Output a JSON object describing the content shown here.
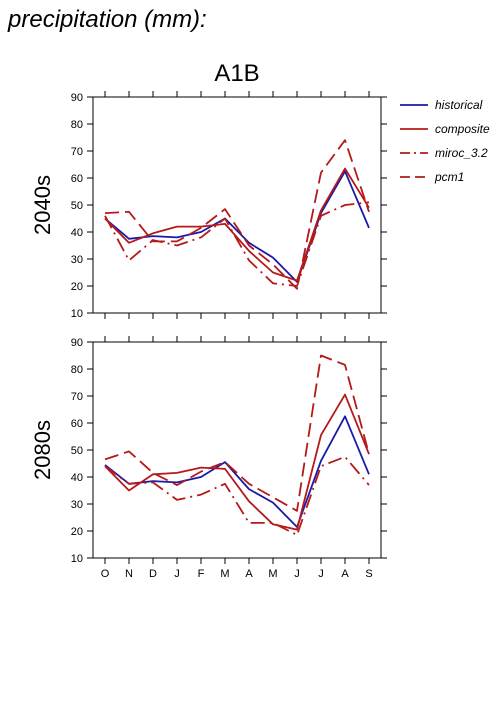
{
  "heading": "precipitation (mm):",
  "chart_data": {
    "type": "line",
    "title": "A1B",
    "categories": [
      "O",
      "N",
      "D",
      "J",
      "F",
      "M",
      "A",
      "M",
      "J",
      "J",
      "A",
      "S"
    ],
    "ylim": [
      10,
      90
    ],
    "yticks": [
      10,
      20,
      30,
      40,
      50,
      60,
      70,
      80,
      90
    ],
    "legend_position": "right",
    "grid": false,
    "legend": [
      {
        "name": "historical",
        "color": "#1a1aaa",
        "dash": "solid"
      },
      {
        "name": "composite",
        "color": "#b41a1a",
        "dash": "solid"
      },
      {
        "name": "miroc_3.2",
        "color": "#b41a1a",
        "dash": "dashdot"
      },
      {
        "name": "pcm1",
        "color": "#b41a1a",
        "dash": "dashed"
      }
    ],
    "panels": [
      {
        "ylabel": "2040s",
        "series": [
          {
            "name": "historical",
            "values": [
              45,
              37.5,
              38.5,
              38,
              40,
              45,
              36,
              30.5,
              21.5,
              47,
              62.5,
              41.5
            ]
          },
          {
            "name": "composite",
            "values": [
              45,
              36,
              39.5,
              42,
              42,
              43,
              33,
              25,
              22,
              48,
              63.5,
              49
            ]
          },
          {
            "name": "miroc_3.2",
            "values": [
              46,
              29.5,
              37,
              35,
              38,
              45,
              29.5,
              21,
              20,
              46,
              50,
              51
            ]
          },
          {
            "name": "pcm1",
            "values": [
              47,
              47.5,
              36.5,
              36.5,
              41.5,
              48.5,
              35,
              28,
              19,
              62,
              74,
              47.5
            ]
          }
        ]
      },
      {
        "ylabel": "2080s",
        "series": [
          {
            "name": "historical",
            "values": [
              44.5,
              37.5,
              38.5,
              38,
              40,
              45.5,
              35.5,
              30.5,
              21.5,
              46,
              62.5,
              41
            ]
          },
          {
            "name": "composite",
            "values": [
              44,
              35,
              41,
              41.5,
              43.5,
              43,
              31,
              22.5,
              20.5,
              55.5,
              70.5,
              48.5
            ]
          },
          {
            "name": "miroc_3.2",
            "values": [
              44,
              37.5,
              38,
              31.5,
              33.5,
              37.5,
              23,
              23,
              18.5,
              44,
              47.5,
              37
            ]
          },
          {
            "name": "pcm1",
            "values": [
              46.5,
              49.5,
              41.5,
              37,
              42,
              45.5,
              37.5,
              32.5,
              27.5,
              85,
              81.5,
              48.5
            ]
          }
        ]
      }
    ]
  }
}
